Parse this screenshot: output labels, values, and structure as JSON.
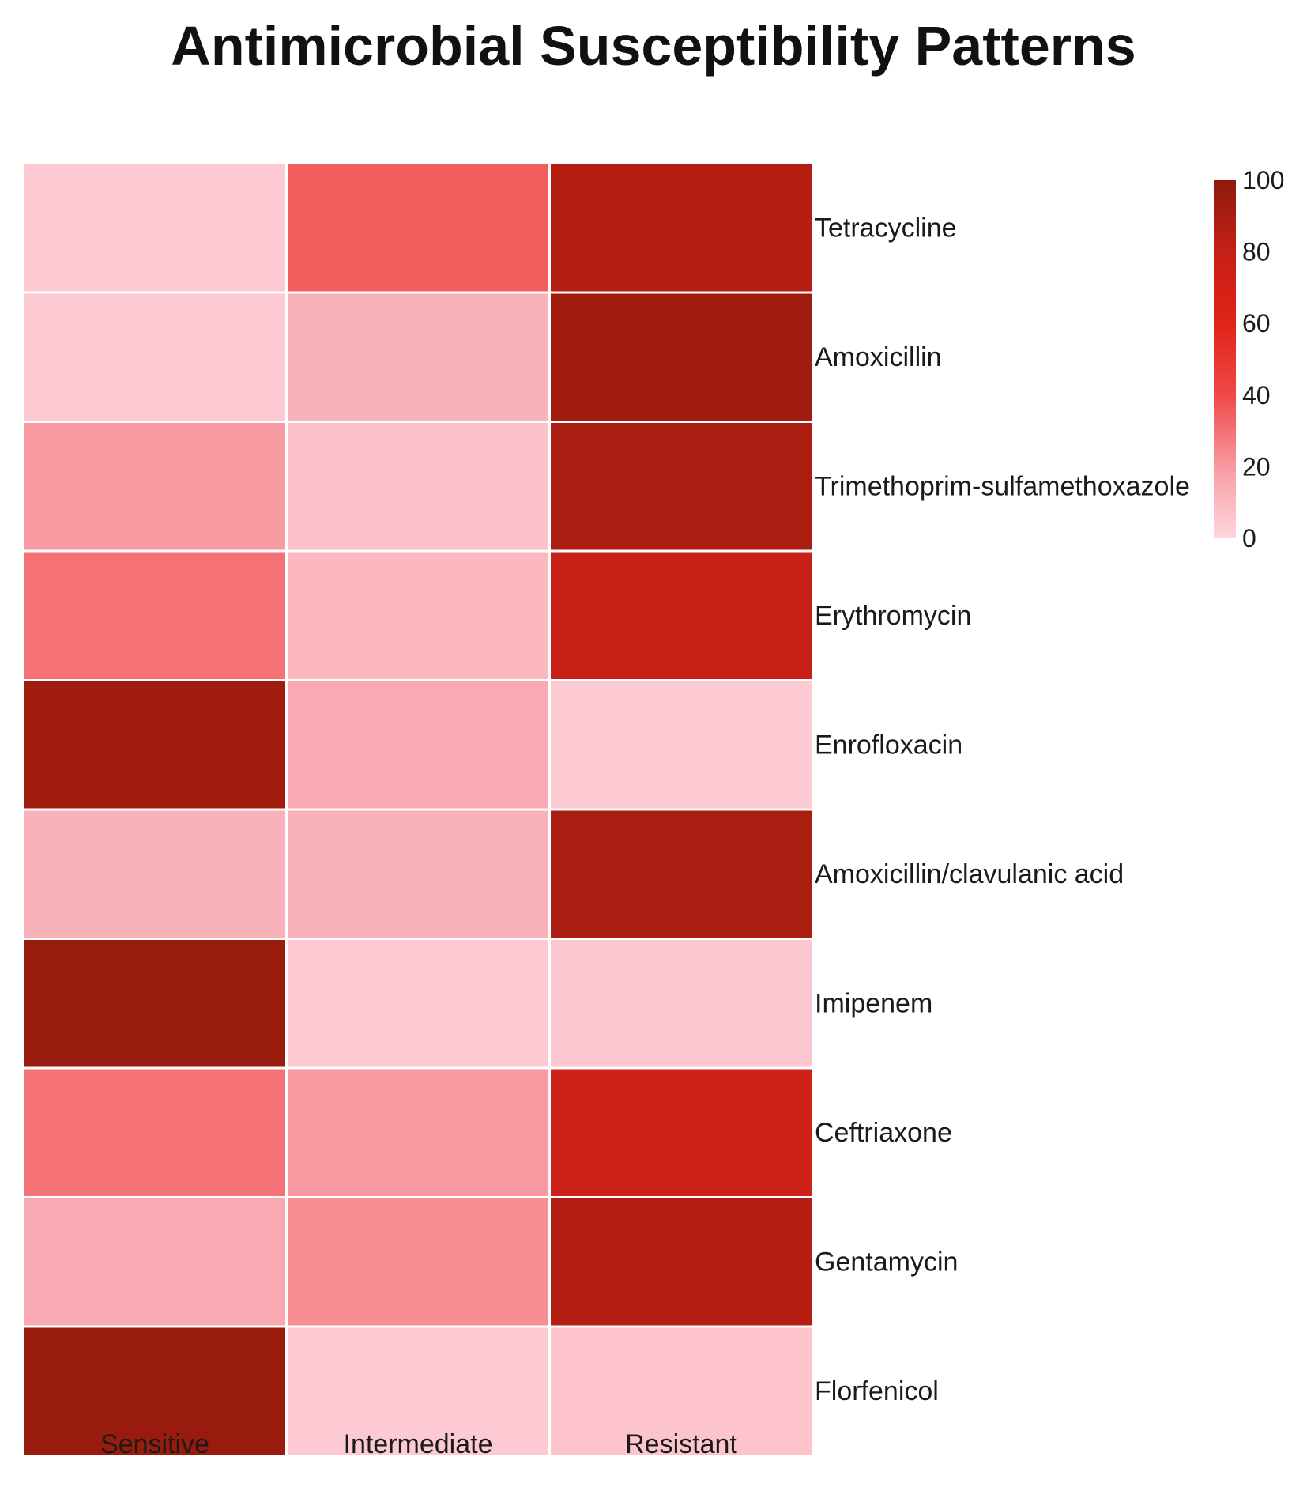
{
  "chart_data": {
    "type": "heatmap",
    "title": "Antimicrobial Susceptibility Patterns",
    "columns": [
      "Sensitive",
      "Intermediate",
      "Resistant"
    ],
    "rows": [
      "Tetracycline",
      "Amoxicillin",
      "Trimethoprim-sulfamethoxazole",
      "Erythromycin",
      "Enrofloxacin",
      "Amoxicillin/clavulanic acid",
      "Imipenem",
      "Ceftriaxone",
      "Gentamycin",
      "Florfenicol"
    ],
    "values": [
      [
        4,
        35,
        86
      ],
      [
        4,
        12,
        94
      ],
      [
        20,
        7,
        89
      ],
      [
        30,
        10,
        78
      ],
      [
        94,
        15,
        4
      ],
      [
        12,
        12,
        90
      ],
      [
        96,
        4,
        5
      ],
      [
        30,
        20,
        73
      ],
      [
        15,
        23,
        86
      ],
      [
        96,
        4,
        6
      ]
    ],
    "colorbar": {
      "min": 0,
      "max": 100,
      "ticks": [
        "0",
        "20",
        "40",
        "60",
        "80",
        "100"
      ],
      "colors": [
        "#ffd6df",
        "#f79aa1",
        "#f04848",
        "#e02418",
        "#c51f16",
        "#8e1a0b"
      ]
    },
    "grid": false,
    "legend_position": "top-right"
  }
}
